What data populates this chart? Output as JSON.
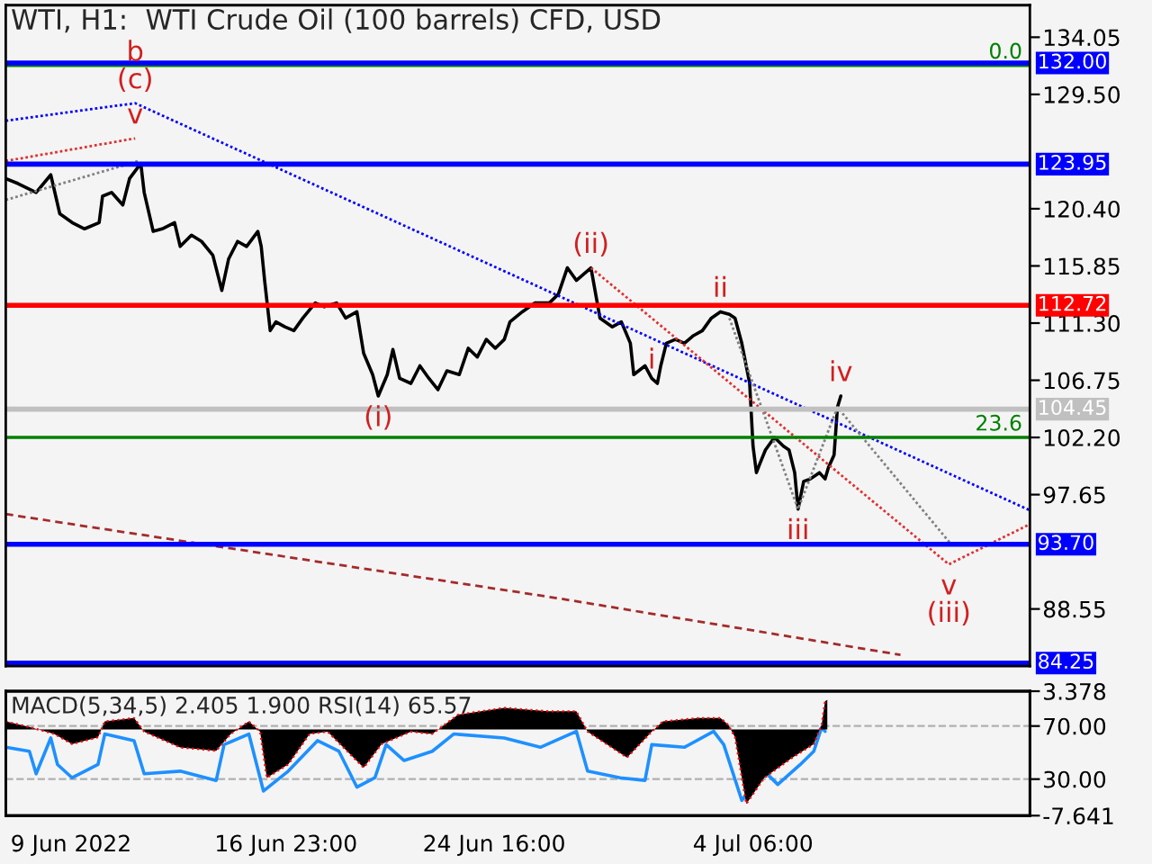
{
  "chart_data": [
    {
      "type": "line",
      "title": "WTI, H1:  WTI Crude Oil (100 barrels) CFD, USD",
      "xlim": [
        "2022-06-06T14:00",
        "2022-07-14T12:00"
      ],
      "ylim": [
        84.0,
        136.6
      ],
      "yticks": [
        {
          "value": 134.05,
          "label": "134.05"
        },
        {
          "value": 129.5,
          "label": "129.50"
        },
        {
          "value": 120.4,
          "label": "120.40"
        },
        {
          "value": 115.85,
          "label": "115.85"
        },
        {
          "value": 111.3,
          "label": "111.30"
        },
        {
          "value": 106.75,
          "label": "106.75"
        },
        {
          "value": 102.2,
          "label": "102.20"
        },
        {
          "value": 97.65,
          "label": "97.65"
        },
        {
          "value": 88.55,
          "label": "88.55"
        }
      ],
      "tick_labels": "y",
      "series": [
        {
          "color": "#000000",
          "x": [
            "2022-06-06T14:00",
            "2022-06-07T01:00",
            "2022-06-07T17:00",
            "2022-06-08T06:00",
            "2022-06-08T14:00",
            "2022-06-09T01:00",
            "2022-06-09T12:00",
            "2022-06-10T01:00",
            "2022-06-10T04:00",
            "2022-06-10T12:00",
            "2022-06-10T22:00",
            "2022-06-11T04:00",
            "2022-06-11T14:00",
            "2022-06-11T17:00",
            "2022-06-12T01:00",
            "2022-06-12T09:00",
            "2022-06-12T20:00",
            "2022-06-13T01:00",
            "2022-06-13T11:00",
            "2022-06-13T20:00",
            "2022-06-14T06:00",
            "2022-06-14T14:00",
            "2022-06-14T20:00",
            "2022-06-15T04:00",
            "2022-06-15T12:00",
            "2022-06-15T22:00",
            "2022-06-16T01:00",
            "2022-06-16T04:00",
            "2022-06-16T09:00",
            "2022-06-16T14:00",
            "2022-06-16T22:00",
            "2022-06-17T06:00",
            "2022-06-17T14:00",
            "2022-06-18T01:00",
            "2022-06-18T09:00",
            "2022-06-18T20:00",
            "2022-06-19T04:00",
            "2022-06-19T14:00",
            "2022-06-19T20:00",
            "2022-06-20T04:00",
            "2022-06-20T09:00",
            "2022-06-20T17:00",
            "2022-06-20T22:00",
            "2022-06-21T04:00",
            "2022-06-21T14:00",
            "2022-06-21T22:00",
            "2022-06-22T06:00",
            "2022-06-22T14:00",
            "2022-06-22T22:00",
            "2022-06-23T09:00",
            "2022-06-23T17:00",
            "2022-06-24T01:00",
            "2022-06-24T09:00",
            "2022-06-24T17:00",
            "2022-06-25T01:00",
            "2022-06-25T06:00",
            "2022-06-25T17:00",
            "2022-06-26T04:00",
            "2022-06-26T17:00",
            "2022-06-27T01:00",
            "2022-06-27T09:00",
            "2022-06-27T17:00",
            "2022-06-28T06:00",
            "2022-06-28T14:00",
            "2022-06-29T01:00",
            "2022-06-29T09:00",
            "2022-06-29T17:00",
            "2022-06-29T20:00",
            "2022-06-30T06:00",
            "2022-06-30T12:00",
            "2022-06-30T17:00",
            "2022-06-30T20:00",
            "2022-07-01T01:00",
            "2022-07-01T09:00",
            "2022-07-01T17:00",
            "2022-07-02T01:00",
            "2022-07-02T09:00",
            "2022-07-02T17:00",
            "2022-07-03T01:00",
            "2022-07-03T09:00",
            "2022-07-03T14:00",
            "2022-07-03T20:00",
            "2022-07-04T03:00",
            "2022-07-04T06:00",
            "2022-07-04T09:00",
            "2022-07-04T12:00",
            "2022-07-04T17:00",
            "2022-07-05T01:00",
            "2022-07-05T09:00",
            "2022-07-05T14:00",
            "2022-07-05T19:00",
            "2022-07-05T22:00",
            "2022-07-06T03:00",
            "2022-07-06T09:00",
            "2022-07-06T17:00",
            "2022-07-06T22:00",
            "2022-07-07T01:00",
            "2022-07-07T06:00",
            "2022-07-07T09:00",
            "2022-07-07T12:00"
          ],
          "values": [
            122.8,
            122.4,
            121.7,
            123.1,
            120.0,
            119.3,
            118.8,
            119.3,
            121.4,
            121.7,
            120.7,
            122.8,
            124.0,
            121.7,
            118.6,
            118.8,
            119.3,
            117.4,
            118.3,
            117.8,
            116.7,
            113.9,
            116.4,
            117.8,
            117.4,
            118.6,
            117.4,
            114.7,
            110.7,
            111.4,
            111.0,
            110.7,
            111.7,
            112.9,
            112.6,
            112.9,
            111.7,
            112.2,
            108.9,
            107.2,
            105.5,
            107.2,
            109.2,
            106.9,
            106.5,
            107.9,
            106.9,
            106.0,
            107.5,
            107.2,
            109.3,
            108.6,
            110.0,
            109.3,
            110.0,
            111.4,
            112.2,
            112.9,
            112.9,
            113.6,
            115.7,
            114.7,
            115.7,
            111.7,
            111.0,
            111.4,
            109.7,
            107.2,
            107.9,
            106.9,
            106.5,
            107.9,
            109.7,
            110.0,
            109.7,
            110.3,
            110.7,
            111.7,
            112.2,
            112.0,
            111.7,
            109.7,
            106.5,
            101.5,
            99.4,
            100.1,
            101.2,
            102.2,
            101.5,
            101.2,
            99.4,
            96.5,
            98.7,
            98.9,
            99.4,
            98.9,
            99.8,
            100.8,
            104.6,
            105.5
          ]
        },
        {
          "type": "line",
          "color": "#0000ff",
          "line_style": "dotted",
          "x": [
            "2022-06-06T14:00",
            "2022-06-11T09:00",
            "2022-07-14T12:00"
          ],
          "values": [
            127.4,
            128.8,
            96.4
          ]
        },
        {
          "type": "line",
          "color": "#e03030",
          "line_style": "dotted",
          "x": [
            "2022-06-06T14:00",
            "2022-06-11T09:00"
          ],
          "values": [
            124.2,
            126.0
          ]
        },
        {
          "type": "line",
          "color": "#e03030",
          "line_style": "dotted",
          "x": [
            "2022-06-28T06:00",
            "2022-07-11T12:00",
            "2022-07-14T12:00"
          ],
          "values": [
            115.7,
            92.1,
            95.3
          ]
        },
        {
          "type": "line",
          "color": "#a52a2a",
          "line_style": "dashed",
          "x": [
            "2022-06-06T14:00",
            "2022-06-27T01:00",
            "2022-07-09T17:00"
          ],
          "values": [
            96.1,
            89.4,
            84.9
          ]
        },
        {
          "type": "line",
          "color": "#808080",
          "line_style": "dotted",
          "x": [
            "2022-06-06T14:00",
            "2022-06-11T12:00"
          ],
          "values": [
            121.1,
            124.2
          ]
        },
        {
          "type": "line",
          "color": "#808080",
          "line_style": "dotted",
          "x": [
            "2022-07-03T09:00",
            "2022-07-05T22:00",
            "2022-07-07T09:00",
            "2022-07-11T14:00"
          ],
          "values": [
            111.7,
            96.5,
            104.6,
            93.7
          ]
        },
        {
          "type": "line",
          "name": "0.0",
          "color": "#008000",
          "x": [
            "2022-06-06T14:00",
            "2022-07-14T12:00"
          ],
          "values": [
            131.8,
            131.8
          ]
        },
        {
          "type": "line",
          "name": "23.6",
          "color": "#008000",
          "x": [
            "2022-06-06T14:00",
            "2022-07-14T12:00"
          ],
          "values": [
            102.2,
            102.2
          ]
        }
      ],
      "ref_lines": [
        {
          "axis": "y",
          "value": 132.0,
          "label": "132.00",
          "color": "#0000ff"
        },
        {
          "axis": "y",
          "value": 123.95,
          "label": "123.95",
          "color": "#0000ff"
        },
        {
          "axis": "y",
          "value": 112.72,
          "label": "112.72",
          "color": "#ff0000"
        },
        {
          "axis": "y",
          "value": 104.45,
          "label": "104.45",
          "color": "#c0c0c0"
        },
        {
          "axis": "y",
          "value": 93.7,
          "label": "93.70",
          "color": "#0000ff"
        },
        {
          "axis": "y",
          "value": 84.25,
          "label": "84.25",
          "color": "#0000ff"
        }
      ],
      "annotations": [
        {
          "text": "(c)",
          "x": "2022-06-11T09:00",
          "y": 128.8
        },
        {
          "text": "b",
          "x": "2022-06-11T09:00",
          "y": 128.8
        },
        {
          "text": "v",
          "x": "2022-06-11T09:00",
          "y": 126.0
        },
        {
          "text": "(i)",
          "x": "2022-06-20T09:00",
          "y": 105.5
        },
        {
          "text": "(ii)",
          "x": "2022-06-28T06:00",
          "y": 115.7
        },
        {
          "text": "i",
          "x": "2022-06-30T12:00",
          "y": 106.5
        },
        {
          "text": "ii",
          "x": "2022-07-03T01:00",
          "y": 112.2
        },
        {
          "text": "iii",
          "x": "2022-07-05T22:00",
          "y": 96.5
        },
        {
          "text": "iv",
          "x": "2022-07-07T12:00",
          "y": 105.5
        },
        {
          "text": "v",
          "x": "2022-07-11T12:00",
          "y": 92.1
        },
        {
          "text": "(iii)",
          "x": "2022-07-11T12:00",
          "y": 92.1
        }
      ]
    },
    {
      "type": "line",
      "xlim": [
        "2022-06-06T14:00",
        "2022-07-14T12:00"
      ],
      "xticks": [
        {
          "value": "2022-06-09T00:00",
          "label": "9 Jun 2022"
        },
        {
          "value": "2022-06-16T23:00",
          "label": "16 Jun 23:00"
        },
        {
          "value": "2022-06-24T16:00",
          "label": "24 Jun 16:00"
        },
        {
          "value": "2022-07-04T06:00",
          "label": "4 Jul 06:00"
        }
      ],
      "ylim": [
        2.5,
        96.25
      ],
      "yticks": [
        {
          "value": 70,
          "label": "70.00"
        },
        {
          "value": 30,
          "label": "30.00"
        }
      ],
      "y2lim": [
        -7.641,
        3.378
      ],
      "y2ticks": [
        {
          "value": 3.378,
          "label": "3.378"
        },
        {
          "value": -7.641,
          "label": "-7.641"
        }
      ],
      "grid": "y",
      "series": [
        {
          "type": "area",
          "axis": "y2",
          "color": "#000000",
          "x": [
            "2022-06-06T14:00",
            "2022-06-07T11:00",
            "2022-06-08T09:00",
            "2022-06-09T01:00",
            "2022-06-10T00:00",
            "2022-06-10T06:00",
            "2022-06-11T08:00",
            "2022-06-11T17:00",
            "2022-06-13T01:00",
            "2022-06-14T09:00",
            "2022-06-14T22:00",
            "2022-06-15T14:00",
            "2022-06-16T00:00",
            "2022-06-16T06:00",
            "2022-06-17T01:00",
            "2022-06-17T20:00",
            "2022-06-18T12:00",
            "2022-06-19T20:00",
            "2022-06-20T12:00",
            "2022-06-21T14:00",
            "2022-06-22T09:00",
            "2022-06-23T08:00",
            "2022-06-25T01:00",
            "2022-06-26T16:00",
            "2022-06-27T17:00",
            "2022-06-28T03:00",
            "2022-06-29T14:00",
            "2022-06-30T12:00",
            "2022-06-30T22:00",
            "2022-07-02T06:00",
            "2022-07-03T01:00",
            "2022-07-03T08:00",
            "2022-07-03T14:00",
            "2022-07-04T00:00",
            "2022-07-04T16:00",
            "2022-07-05T17:00",
            "2022-07-06T12:00",
            "2022-07-06T19:00",
            "2022-07-06T22:00",
            "2022-07-07T00:00"
          ],
          "values": [
            0.7,
            0.2,
            -0.4,
            -1.3,
            -0.7,
            0.7,
            1.0,
            -0.2,
            -1.6,
            -1.9,
            -0.4,
            0.7,
            -0.2,
            -4.3,
            -3.1,
            -0.4,
            -0.2,
            -3.4,
            -1.3,
            -0.2,
            -0.4,
            1.3,
            1.9,
            1.6,
            1.6,
            -0.2,
            -2.5,
            -0.2,
            0.7,
            1.0,
            1.0,
            0.4,
            -0.7,
            -6.6,
            -4.3,
            -2.5,
            -1.3,
            0.4,
            2.5,
            2.6
          ]
        },
        {
          "type": "line",
          "color": "#1e90ff",
          "x": [
            "2022-06-06T14:00",
            "2022-06-07T11:00",
            "2022-06-07T17:00",
            "2022-06-08T06:00",
            "2022-06-08T12:00",
            "2022-06-09T01:00",
            "2022-06-10T00:00",
            "2022-06-10T06:00",
            "2022-06-11T08:00",
            "2022-06-11T17:00",
            "2022-06-13T01:00",
            "2022-06-14T09:00",
            "2022-06-14T16:00",
            "2022-06-15T14:00",
            "2022-06-16T03:00",
            "2022-06-17T01:00",
            "2022-06-18T03:00",
            "2022-06-18T22:00",
            "2022-06-19T14:00",
            "2022-06-20T06:00",
            "2022-06-20T16:00",
            "2022-06-21T08:00",
            "2022-06-22T09:00",
            "2022-06-23T04:00",
            "2022-06-25T01:00",
            "2022-06-26T09:00",
            "2022-06-27T17:00",
            "2022-06-28T03:00",
            "2022-06-29T08:00",
            "2022-06-30T06:00",
            "2022-06-30T12:00",
            "2022-07-01T17:00",
            "2022-07-02T19:00",
            "2022-07-03T04:00",
            "2022-07-03T20:00",
            "2022-07-04T16:00",
            "2022-07-05T04:00",
            "2022-07-06T00:00",
            "2022-07-06T12:00",
            "2022-07-06T19:00",
            "2022-07-06T22:00"
          ],
          "values": [
            54,
            51,
            34,
            61,
            41,
            31,
            41,
            64,
            59,
            34,
            36,
            29,
            56,
            64,
            21,
            36,
            59,
            51,
            24,
            31,
            56,
            44,
            51,
            64,
            61,
            54,
            66,
            36,
            31,
            29,
            56,
            54,
            66,
            56,
            14,
            36,
            26,
            41,
            51,
            69,
            66
          ]
        }
      ],
      "annotations": [
        "MACD(5,34,5) 2.405 1.900 RSI(14) 65.57"
      ]
    }
  ]
}
